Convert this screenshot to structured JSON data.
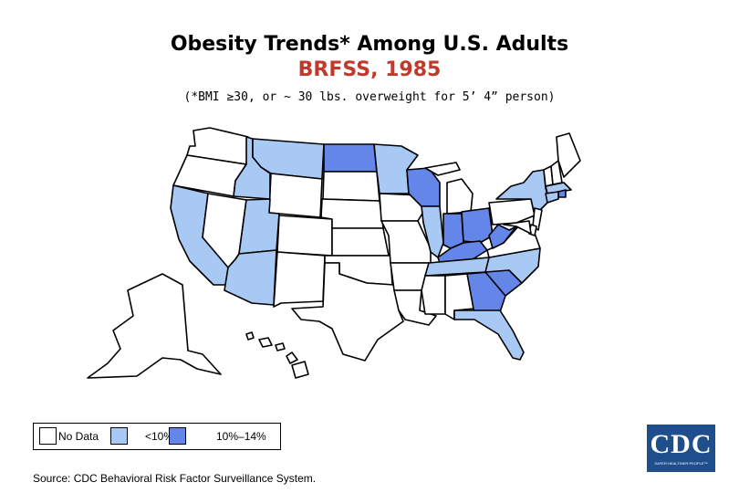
{
  "title": "Obesity Trends* Among U.S. Adults",
  "subtitle": "BRFSS, 1985",
  "note": "(*BMI ≥30, or ~ 30 lbs. overweight for 5’ 4” person)",
  "colors": {
    "no_data": "#ffffff",
    "lt10": "#a9c9f5",
    "10_14": "#6486e8",
    "subtitle": "#c0392b"
  },
  "legend": [
    {
      "label": "No Data",
      "category": "no_data"
    },
    {
      "label": "<10%",
      "category": "lt10"
    },
    {
      "label": "10%–14%",
      "category": "10_14"
    }
  ],
  "states": {
    "WA": "no_data",
    "OR": "no_data",
    "CA": "lt10",
    "NV": "no_data",
    "ID": "lt10",
    "MT": "lt10",
    "WY": "no_data",
    "UT": "lt10",
    "AZ": "lt10",
    "CO": "no_data",
    "NM": "no_data",
    "ND": "10_14",
    "SD": "no_data",
    "NE": "no_data",
    "KS": "no_data",
    "OK": "no_data",
    "TX": "no_data",
    "MN": "lt10",
    "IA": "no_data",
    "MO": "no_data",
    "AR": "no_data",
    "LA": "no_data",
    "WI": "10_14",
    "IL": "lt10",
    "MI": "no_data",
    "IN": "10_14",
    "OH": "10_14",
    "KY": "10_14",
    "TN": "lt10",
    "MS": "no_data",
    "AL": "no_data",
    "GA": "10_14",
    "FL": "lt10",
    "SC": "10_14",
    "NC": "lt10",
    "VA": "no_data",
    "WV": "10_14",
    "PA": "no_data",
    "NY": "lt10",
    "VT": "no_data",
    "NH": "no_data",
    "ME": "no_data",
    "MA": "lt10",
    "RI": "10_14",
    "CT": "lt10",
    "NJ": "no_data",
    "DE": "no_data",
    "MD": "no_data",
    "DC": "no_data",
    "AK": "no_data",
    "HI": "no_data"
  },
  "source": "Source: CDC Behavioral Risk Factor Surveillance System.",
  "logo": {
    "text": "CDC",
    "tagline": "SAFER·HEALTHIER·PEOPLE™"
  }
}
